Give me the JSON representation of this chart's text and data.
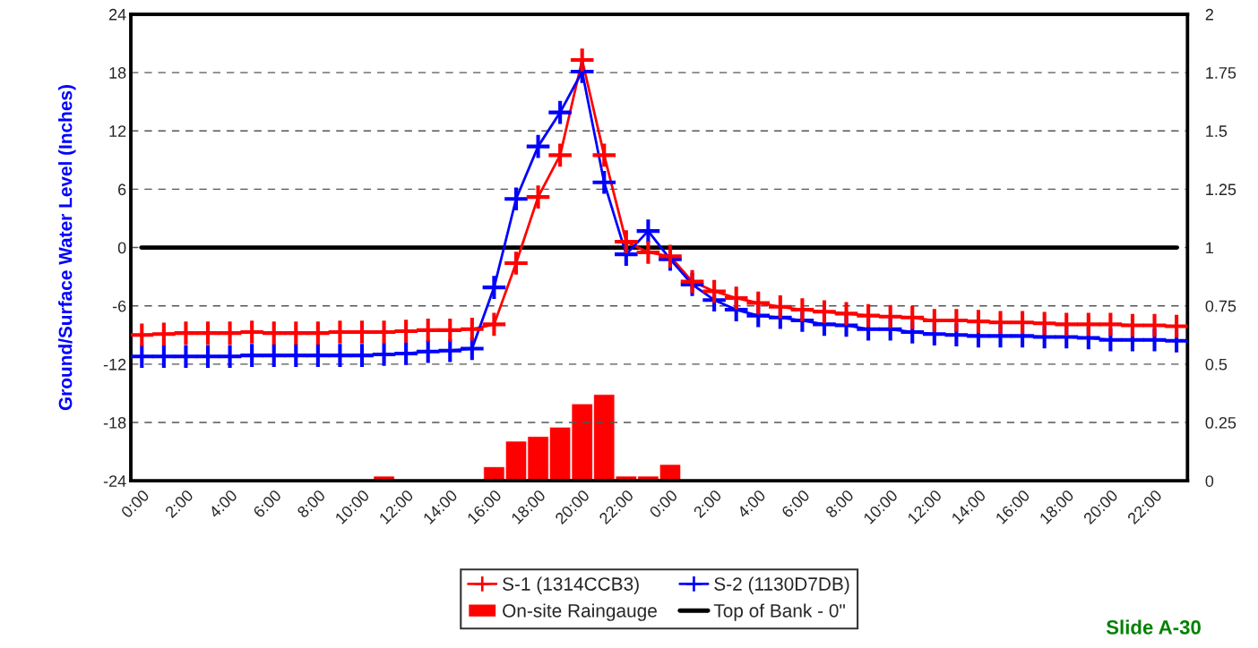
{
  "chart_data": {
    "type": "line",
    "ylabel": "Ground/Surface Water Level (Inches)",
    "categories": [
      "0:00",
      null,
      "2:00",
      null,
      "4:00",
      null,
      "6:00",
      null,
      "8:00",
      null,
      "10:00",
      null,
      "12:00",
      null,
      "14:00",
      null,
      "16:00",
      null,
      "18:00",
      null,
      "20:00",
      null,
      "22:00",
      null,
      "0:00",
      null,
      "2:00",
      null,
      "4:00",
      null,
      "6:00",
      null,
      "8:00",
      null,
      "10:00",
      null,
      "12:00",
      null,
      "14:00",
      null,
      "16:00",
      null,
      "18:00",
      null,
      "20:00",
      null,
      "22:00",
      null
    ],
    "series": [
      {
        "name": "S-1 (1314CCB3)",
        "color": "#ff0000",
        "values": [
          -9.0,
          -8.9,
          -8.8,
          -8.8,
          -8.8,
          -8.7,
          -8.8,
          -8.8,
          -8.8,
          -8.7,
          -8.7,
          -8.7,
          -8.6,
          -8.5,
          -8.5,
          -8.4,
          -7.9,
          -1.6,
          5.2,
          9.5,
          19.3,
          9.5,
          0.6,
          -0.5,
          -0.9,
          -3.5,
          -4.5,
          -5.2,
          -5.7,
          -6.1,
          -6.4,
          -6.6,
          -6.8,
          -7.0,
          -7.1,
          -7.2,
          -7.5,
          -7.5,
          -7.6,
          -7.7,
          -7.7,
          -7.8,
          -7.9,
          -7.9,
          -7.9,
          -8.0,
          -8.0,
          -8.1
        ]
      },
      {
        "name": "S-2 (1130D7DB)",
        "color": "#0000ff",
        "values": [
          -11.2,
          -11.2,
          -11.2,
          -11.2,
          -11.2,
          -11.1,
          -11.1,
          -11.1,
          -11.1,
          -11.1,
          -11.1,
          -11.0,
          -10.9,
          -10.7,
          -10.6,
          -10.4,
          -4.1,
          5.0,
          10.4,
          13.9,
          18.1,
          6.7,
          -0.7,
          1.7,
          -1.2,
          -3.8,
          -5.4,
          -6.4,
          -7.0,
          -7.2,
          -7.5,
          -7.9,
          -8.0,
          -8.4,
          -8.4,
          -8.7,
          -8.9,
          -9.0,
          -9.1,
          -9.1,
          -9.1,
          -9.2,
          -9.2,
          -9.3,
          -9.5,
          -9.5,
          -9.5,
          -9.6
        ]
      },
      {
        "name": "On-site Raingauge",
        "type": "bar",
        "axis": "y2",
        "color": "#ff0000",
        "values": [
          null,
          null,
          null,
          null,
          null,
          null,
          null,
          null,
          null,
          null,
          null,
          0.02,
          null,
          null,
          null,
          null,
          0.06,
          0.17,
          0.19,
          0.23,
          0.33,
          0.37,
          0.02,
          0.02,
          0.07,
          null,
          null,
          null,
          null,
          null,
          null,
          null,
          null,
          null,
          null,
          null,
          null,
          null,
          null,
          null,
          null,
          null,
          null,
          null,
          null,
          null,
          null,
          null
        ]
      }
    ],
    "ylim": [
      -24,
      24
    ],
    "yticks": [
      -24,
      -18,
      -12,
      -6,
      0,
      6,
      12,
      18,
      24
    ],
    "y2lim": [
      0,
      2
    ],
    "y2ticks": [
      0,
      0.25,
      0.5,
      0.75,
      1,
      1.25,
      1.5,
      1.75,
      2
    ],
    "ref_lines": [
      {
        "axis": "y",
        "value": 0,
        "label": "Top of Bank - 0\"",
        "color": "#000000",
        "line_style": "solid"
      }
    ],
    "grid": "y",
    "legend": "bottom",
    "marker": "cross",
    "line_style": "solid",
    "annotations": [
      "Slide A-30"
    ]
  }
}
